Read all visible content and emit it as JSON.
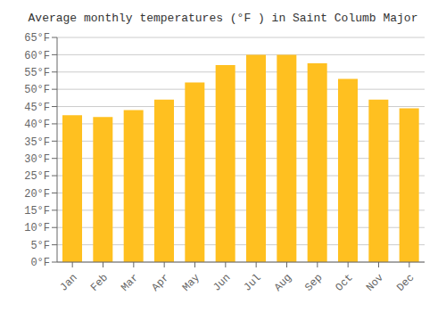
{
  "chart_data": {
    "type": "bar",
    "title": "Average monthly temperatures (°F ) in Saint Columb Major",
    "categories": [
      "Jan",
      "Feb",
      "Mar",
      "Apr",
      "May",
      "Jun",
      "Jul",
      "Aug",
      "Sep",
      "Oct",
      "Nov",
      "Dec"
    ],
    "values": [
      42.5,
      42.0,
      44.0,
      47.0,
      52.0,
      57.0,
      60.0,
      60.0,
      57.5,
      53.0,
      47.0,
      44.5
    ],
    "color": "#FFC020",
    "ylim": [
      0,
      65
    ],
    "yticks": [
      {
        "value": 0,
        "label": "0°F"
      },
      {
        "value": 5,
        "label": "5°F"
      },
      {
        "value": 10,
        "label": "10°F"
      },
      {
        "value": 15,
        "label": "15°F"
      },
      {
        "value": 20,
        "label": "20°F"
      },
      {
        "value": 25,
        "label": "25°F"
      },
      {
        "value": 30,
        "label": "30°F"
      },
      {
        "value": 35,
        "label": "35°F"
      },
      {
        "value": 40,
        "label": "40°F"
      },
      {
        "value": 45,
        "label": "45°F"
      },
      {
        "value": 50,
        "label": "50°F"
      },
      {
        "value": 55,
        "label": "55°F"
      },
      {
        "value": 60,
        "label": "60°F"
      },
      {
        "value": 65,
        "label": "65°F"
      }
    ],
    "grid": true
  }
}
